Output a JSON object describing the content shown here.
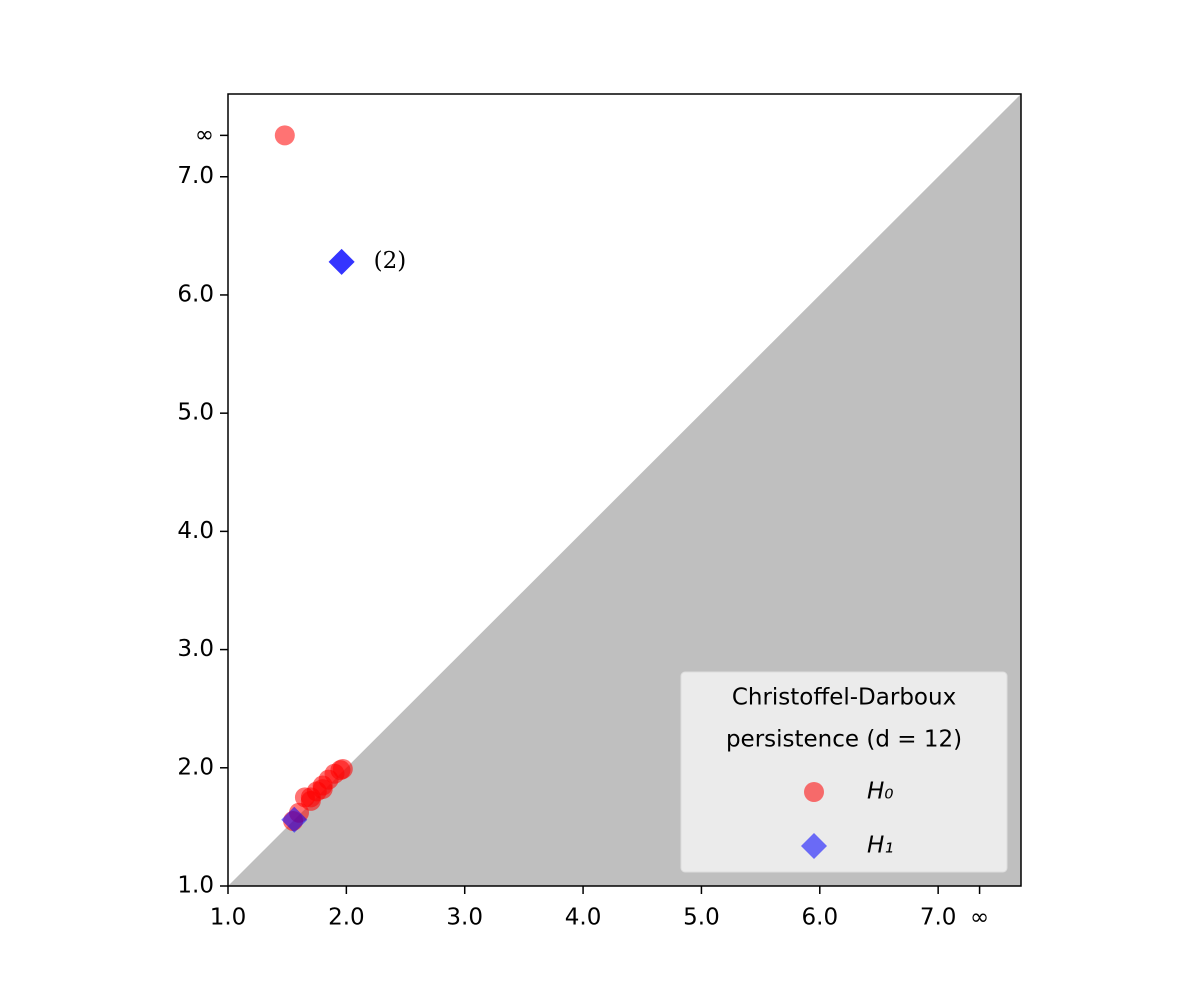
{
  "chart_data": {
    "type": "scatter",
    "xlim": [
      1.0,
      7.7
    ],
    "ylim": [
      1.0,
      7.7
    ],
    "xticks": [
      {
        "value": 1,
        "label": "1.0"
      },
      {
        "value": 2,
        "label": "2.0"
      },
      {
        "value": 3,
        "label": "3.0"
      },
      {
        "value": 4,
        "label": "4.0"
      },
      {
        "value": 5,
        "label": "5.0"
      },
      {
        "value": 6,
        "label": "6.0"
      },
      {
        "value": 7,
        "label": "7.0"
      },
      {
        "value": 7.35,
        "label": "∞"
      }
    ],
    "yticks": [
      {
        "value": 1,
        "label": "1.0"
      },
      {
        "value": 2,
        "label": "2.0"
      },
      {
        "value": 3,
        "label": "3.0"
      },
      {
        "value": 4,
        "label": "4.0"
      },
      {
        "value": 5,
        "label": "5.0"
      },
      {
        "value": 6,
        "label": "6.0"
      },
      {
        "value": 7,
        "label": "7.0"
      },
      {
        "value": 7.35,
        "label": "∞"
      }
    ],
    "legend_title": [
      "Christoffel-Darboux",
      "persistence (d = 12)"
    ],
    "legend_position": "lower right",
    "annotation": "(2)",
    "series": [
      {
        "name": "H₀",
        "color": "#ff0000",
        "marker": "circle",
        "x": [
          1.48,
          1.55,
          1.6,
          1.65,
          1.7,
          1.7,
          1.75,
          1.8,
          1.8,
          1.85,
          1.9,
          1.95,
          1.97
        ],
        "values": [
          7.35,
          1.55,
          1.62,
          1.75,
          1.75,
          1.72,
          1.8,
          1.85,
          1.82,
          1.9,
          1.95,
          1.98,
          1.99
        ]
      },
      {
        "name": "H₁",
        "color": "#0000ff",
        "marker": "diamond",
        "x": [
          1.96,
          1.96,
          1.56
        ],
        "values": [
          6.28,
          6.28,
          1.56
        ]
      }
    ]
  }
}
